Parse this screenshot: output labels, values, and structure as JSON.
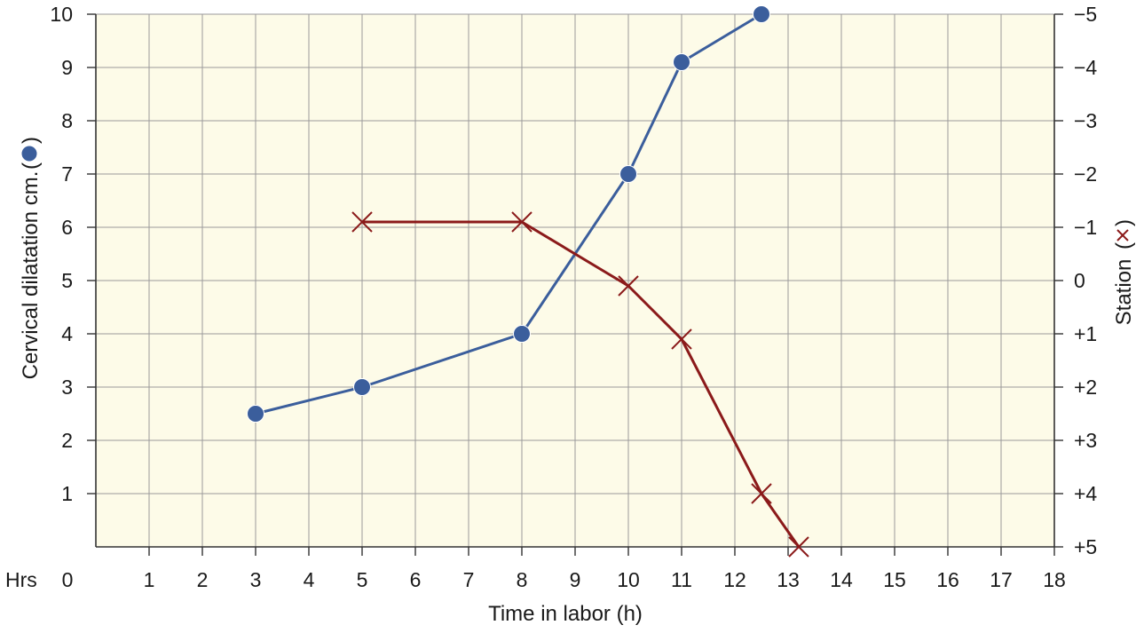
{
  "chart_data": {
    "type": "line",
    "xlabel": "Time in labor (h)",
    "x_prefix_label": "Hrs",
    "x_ticks": [
      "0",
      "1",
      "2",
      "3",
      "4",
      "5",
      "6",
      "7",
      "8",
      "9",
      "10",
      "11",
      "12",
      "13",
      "14",
      "15",
      "16",
      "17",
      "18"
    ],
    "xlim": [
      0,
      18
    ],
    "ylabel_left": "Cervical dilatation cm.",
    "ylim_left": [
      0,
      10
    ],
    "y_left_ticks": [
      "1",
      "2",
      "3",
      "4",
      "5",
      "6",
      "7",
      "8",
      "9",
      "10"
    ],
    "ylabel_right": "Station",
    "y_right_ticks": [
      "+5",
      "+4",
      "+3",
      "+2",
      "+1",
      "0",
      "−1",
      "−2",
      "−3",
      "−4",
      "−5"
    ],
    "ylim_right": [
      5,
      -5
    ],
    "grid": true,
    "background": "#fdfbe8",
    "series": [
      {
        "marker": "circle",
        "color": "#3b5e9c",
        "axis": "left",
        "points": [
          [
            3,
            2.5
          ],
          [
            5,
            3
          ],
          [
            8,
            4
          ],
          [
            10,
            7
          ],
          [
            11,
            9.1
          ],
          [
            12.5,
            10
          ]
        ]
      },
      {
        "marker": "x",
        "color": "#8b1a1a",
        "axis": "right",
        "points": [
          [
            5,
            -1.1
          ],
          [
            8,
            -1.1
          ],
          [
            10,
            0.1
          ],
          [
            11,
            1.1
          ],
          [
            12.5,
            4
          ],
          [
            13.2,
            5
          ]
        ]
      }
    ]
  }
}
